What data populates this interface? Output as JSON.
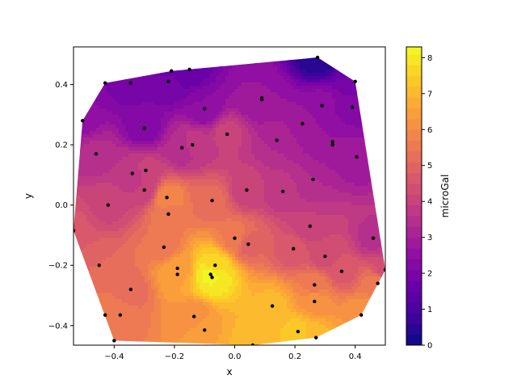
{
  "chart_data": {
    "type": "heatmap",
    "subtype": "filled-contour-with-scatter",
    "xlabel": "x",
    "ylabel": "y",
    "colorbar_label": "microGal",
    "xlim": [
      -0.535,
      0.5
    ],
    "ylim": [
      -0.465,
      0.525
    ],
    "x_ticks": [
      -0.4,
      -0.2,
      0.0,
      0.2,
      0.4
    ],
    "x_tick_labels": [
      "−0.4",
      "−0.2",
      "0.0",
      "0.2",
      "0.4"
    ],
    "y_ticks": [
      -0.4,
      -0.2,
      0.0,
      0.2,
      0.4
    ],
    "y_tick_labels": [
      "−0.4",
      "−0.2",
      "0.0",
      "0.2",
      "0.4"
    ],
    "colorbar_range": [
      0,
      8.3
    ],
    "colorbar_ticks": [
      0,
      1,
      2,
      3,
      4,
      5,
      6,
      7,
      8
    ],
    "colorbar_tick_labels": [
      "0",
      "1",
      "2",
      "3",
      "4",
      "5",
      "6",
      "7",
      "8"
    ],
    "colormap": "plasma",
    "grid": false,
    "points": [
      {
        "x": -0.505,
        "y": 0.28,
        "v": 2.6
      },
      {
        "x": -0.46,
        "y": 0.17,
        "v": 3.4
      },
      {
        "x": -0.535,
        "y": -0.085,
        "v": 4.6
      },
      {
        "x": -0.43,
        "y": 0.405,
        "v": 2.1
      },
      {
        "x": -0.345,
        "y": 0.405,
        "v": 1.9
      },
      {
        "x": -0.22,
        "y": 0.41,
        "v": 1.9
      },
      {
        "x": -0.21,
        "y": 0.445,
        "v": 1.6
      },
      {
        "x": -0.15,
        "y": 0.45,
        "v": 1.6
      },
      {
        "x": -0.3,
        "y": 0.255,
        "v": 2.2
      },
      {
        "x": -0.1,
        "y": 0.32,
        "v": 2.4
      },
      {
        "x": -0.14,
        "y": 0.2,
        "v": 3.8
      },
      {
        "x": -0.175,
        "y": 0.19,
        "v": 3.3
      },
      {
        "x": -0.025,
        "y": 0.235,
        "v": 4.0
      },
      {
        "x": 0.09,
        "y": 0.355,
        "v": 2.7
      },
      {
        "x": 0.09,
        "y": 0.35,
        "v": 2.7
      },
      {
        "x": 0.14,
        "y": 0.215,
        "v": 3.3
      },
      {
        "x": 0.225,
        "y": 0.27,
        "v": 2.8
      },
      {
        "x": 0.275,
        "y": 0.49,
        "v": 0.3
      },
      {
        "x": 0.29,
        "y": 0.33,
        "v": 2.5
      },
      {
        "x": 0.325,
        "y": 0.21,
        "v": 2.7
      },
      {
        "x": 0.325,
        "y": 0.2,
        "v": 2.7
      },
      {
        "x": 0.4,
        "y": 0.41,
        "v": 1.8
      },
      {
        "x": 0.39,
        "y": 0.325,
        "v": 2.2
      },
      {
        "x": 0.405,
        "y": 0.16,
        "v": 2.8
      },
      {
        "x": -0.34,
        "y": 0.105,
        "v": 3.6
      },
      {
        "x": -0.295,
        "y": 0.115,
        "v": 4.0
      },
      {
        "x": -0.3,
        "y": 0.05,
        "v": 3.9
      },
      {
        "x": -0.225,
        "y": 0.025,
        "v": 6.0
      },
      {
        "x": -0.22,
        "y": -0.03,
        "v": 5.6
      },
      {
        "x": -0.42,
        "y": 0.0,
        "v": 4.1
      },
      {
        "x": -0.075,
        "y": 0.015,
        "v": 5.2
      },
      {
        "x": 0.04,
        "y": 0.05,
        "v": 4.0
      },
      {
        "x": 0.16,
        "y": 0.045,
        "v": 3.7
      },
      {
        "x": 0.26,
        "y": 0.085,
        "v": 3.3
      },
      {
        "x": -0.235,
        "y": -0.14,
        "v": 5.4
      },
      {
        "x": 0.0,
        "y": -0.11,
        "v": 5.6
      },
      {
        "x": 0.045,
        "y": -0.13,
        "v": 5.0
      },
      {
        "x": 0.195,
        "y": -0.145,
        "v": 4.6
      },
      {
        "x": 0.25,
        "y": -0.07,
        "v": 3.9
      },
      {
        "x": 0.3,
        "y": -0.17,
        "v": 4.3
      },
      {
        "x": 0.46,
        "y": -0.11,
        "v": 3.5
      },
      {
        "x": 0.5,
        "y": -0.215,
        "v": 4.3
      },
      {
        "x": 0.475,
        "y": -0.26,
        "v": 5.7
      },
      {
        "x": 0.355,
        "y": -0.22,
        "v": 4.7
      },
      {
        "x": -0.45,
        "y": -0.2,
        "v": 5.1
      },
      {
        "x": -0.19,
        "y": -0.21,
        "v": 6.4
      },
      {
        "x": -0.19,
        "y": -0.23,
        "v": 6.6
      },
      {
        "x": -0.065,
        "y": -0.2,
        "v": 7.6
      },
      {
        "x": -0.08,
        "y": -0.23,
        "v": 8.2
      },
      {
        "x": -0.075,
        "y": -0.24,
        "v": 8.1
      },
      {
        "x": -0.345,
        "y": -0.28,
        "v": 5.2
      },
      {
        "x": 0.265,
        "y": -0.265,
        "v": 5.6
      },
      {
        "x": 0.265,
        "y": -0.32,
        "v": 6.2
      },
      {
        "x": 0.125,
        "y": -0.335,
        "v": 7.0
      },
      {
        "x": -0.43,
        "y": -0.365,
        "v": 5.6
      },
      {
        "x": -0.38,
        "y": -0.365,
        "v": 5.5
      },
      {
        "x": -0.135,
        "y": -0.37,
        "v": 6.0
      },
      {
        "x": 0.42,
        "y": -0.365,
        "v": 6.3
      },
      {
        "x": -0.1,
        "y": -0.415,
        "v": 6.6
      },
      {
        "x": 0.21,
        "y": -0.42,
        "v": 7.3
      },
      {
        "x": 0.27,
        "y": -0.44,
        "v": 7.0
      },
      {
        "x": -0.4,
        "y": -0.45,
        "v": 5.7
      },
      {
        "x": 0.06,
        "y": -0.465,
        "v": 7.2
      }
    ]
  }
}
